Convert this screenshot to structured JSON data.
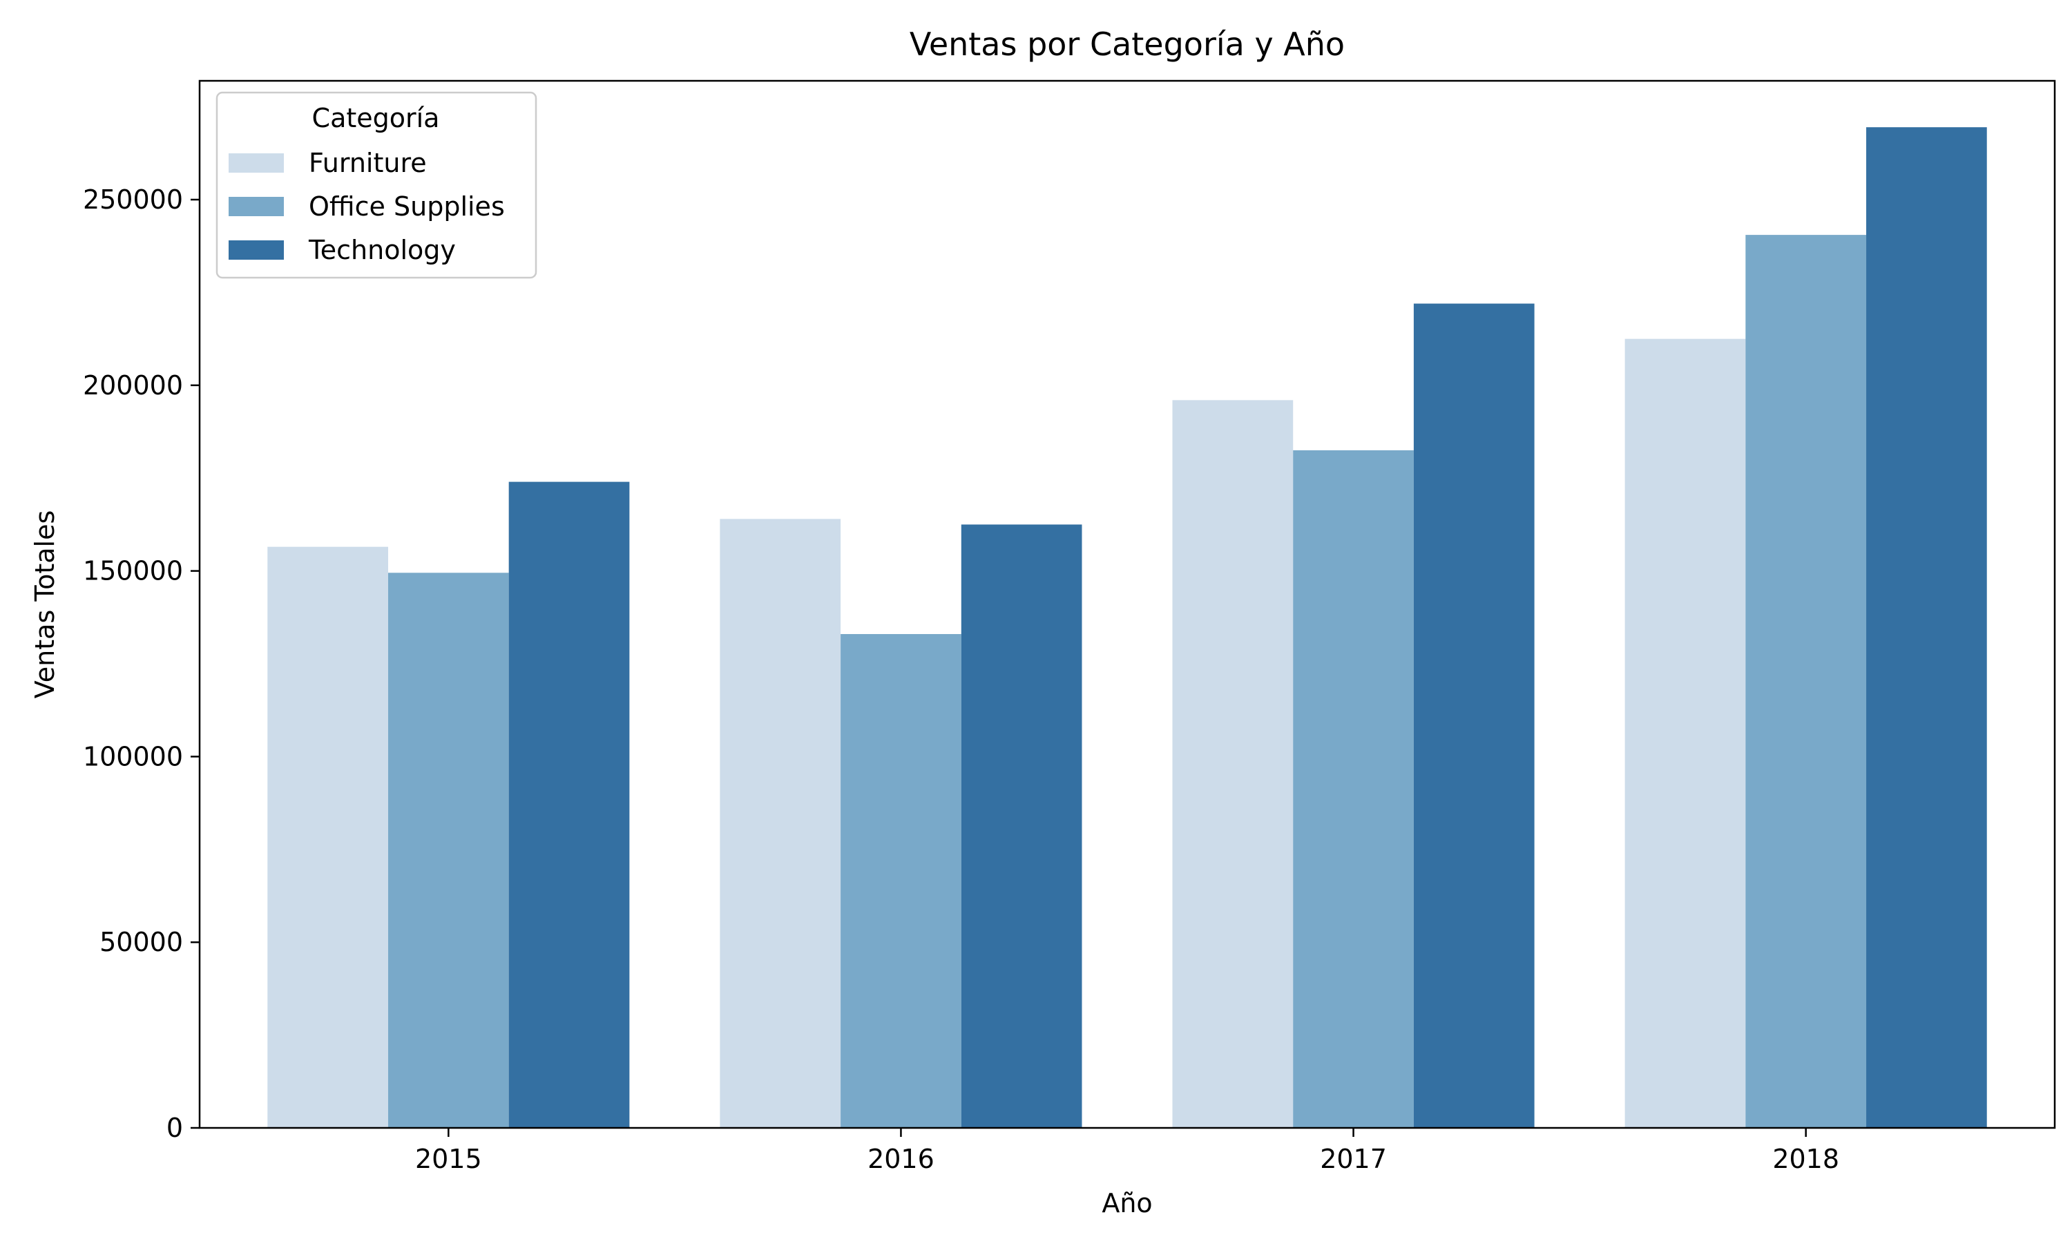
{
  "chart_data": {
    "type": "bar",
    "title": "Ventas por Categoría y Año",
    "xlabel": "Año",
    "ylabel": "Ventas Totales",
    "categories": [
      "2015",
      "2016",
      "2017",
      "2018"
    ],
    "series": [
      {
        "name": "Furniture",
        "color": "#cddcea",
        "values": [
          156500,
          164000,
          196000,
          212500
        ]
      },
      {
        "name": "Office Supplies",
        "color": "#79a9c9",
        "values": [
          149500,
          133000,
          182500,
          240500
        ]
      },
      {
        "name": "Technology",
        "color": "#3470a2",
        "values": [
          174000,
          162500,
          222000,
          269500
        ]
      }
    ],
    "ylim": [
      0,
      282000
    ],
    "yticks": [
      0,
      50000,
      100000,
      150000,
      200000,
      250000
    ],
    "ytick_labels": [
      "0",
      "50000",
      "100000",
      "150000",
      "200000",
      "250000"
    ],
    "grid": false,
    "legend": {
      "title": "Categoría",
      "placement": "top-left"
    }
  }
}
